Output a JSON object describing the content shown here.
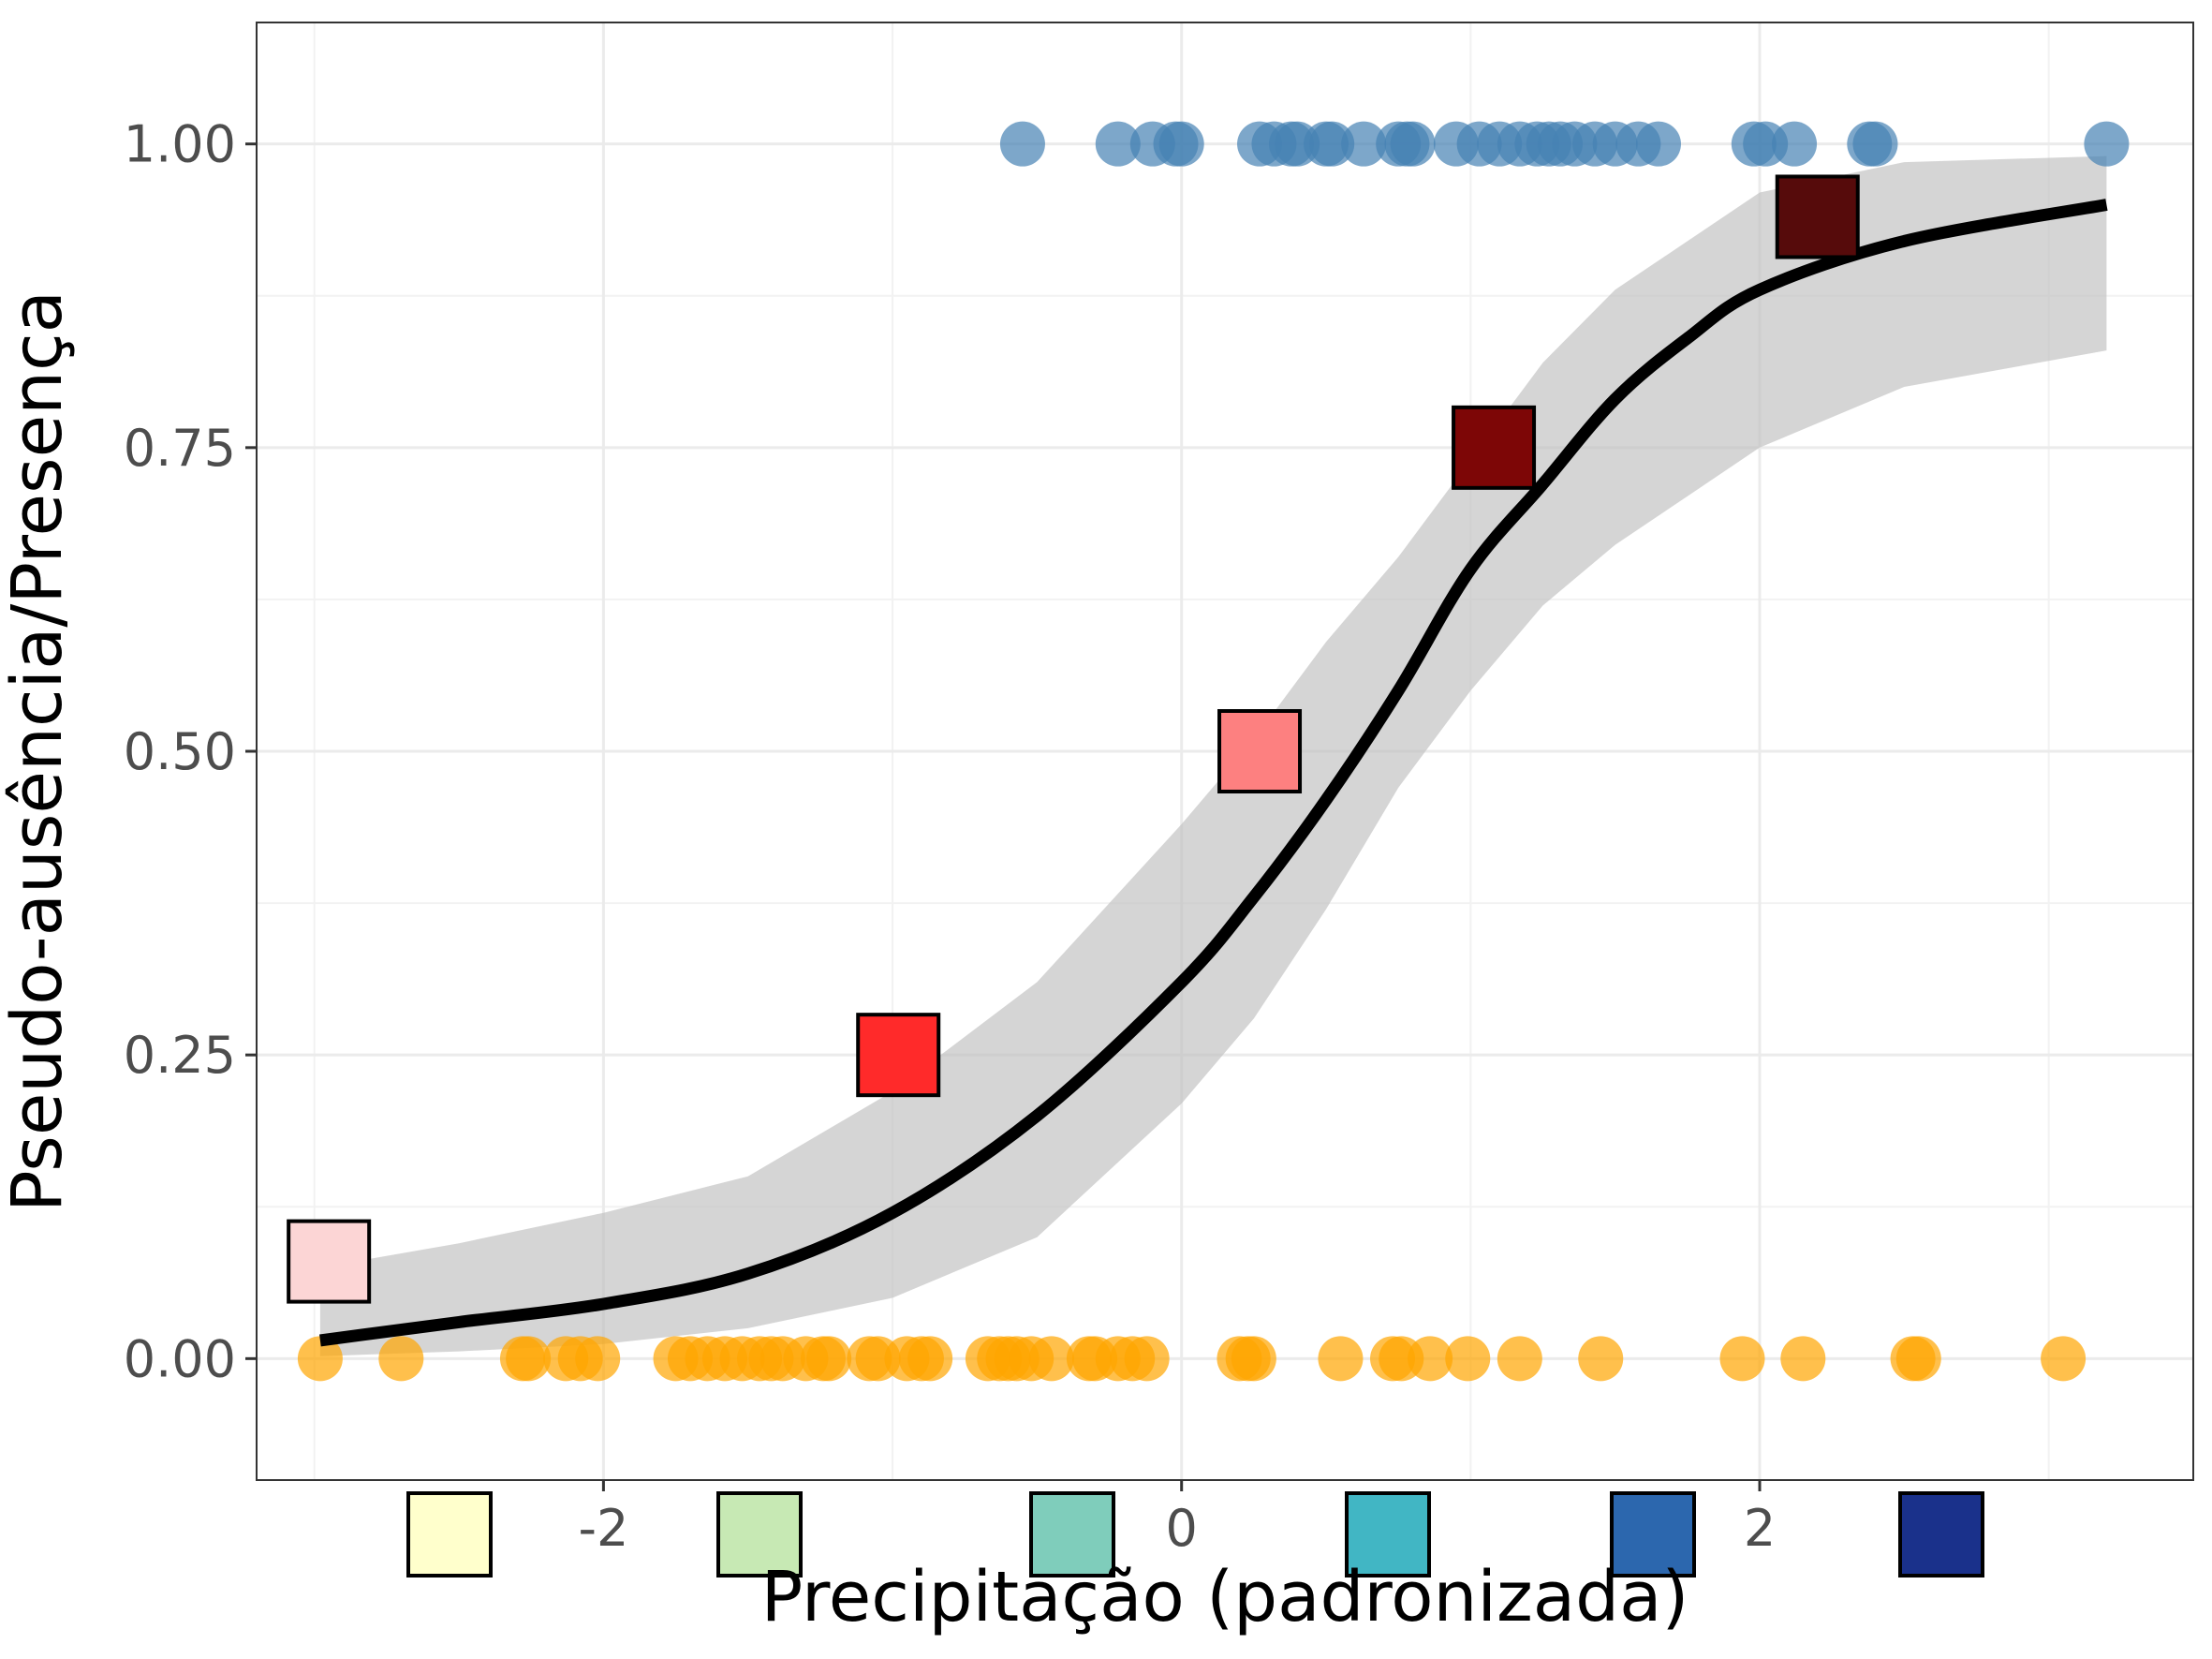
{
  "chart_data": {
    "type": "scatter",
    "title": "",
    "xlabel": "Precipitação (padronizada)",
    "ylabel": "Pseudo-ausência/Presença",
    "xlim": [
      -3.2,
      3.5
    ],
    "ylim": [
      -0.1,
      1.1
    ],
    "x_ticks": [
      -2,
      0,
      2
    ],
    "x_tick_labels": [
      "-2",
      "0",
      "2"
    ],
    "y_ticks": [
      0,
      0.25,
      0.5,
      0.75,
      1.0
    ],
    "y_tick_labels": [
      "0.00",
      "0.25",
      "0.50",
      "0.75",
      "1.00"
    ],
    "grid": true,
    "colors": {
      "presence": "#4682b4",
      "absence": "#ffa500",
      "fit_line": "#000000",
      "ribbon": "#bfbfbf"
    },
    "series": [
      {
        "kind": "points",
        "color": "#4682b4",
        "y": 1,
        "x": [
          -0.55,
          -0.22,
          -0.1,
          -0.02,
          0.0,
          0.27,
          0.32,
          0.38,
          0.4,
          0.5,
          0.52,
          0.63,
          0.75,
          0.78,
          0.8,
          0.95,
          1.03,
          1.1,
          1.17,
          1.23,
          1.27,
          1.31,
          1.36,
          1.43,
          1.5,
          1.58,
          1.65,
          1.98,
          2.02,
          2.12,
          2.38,
          2.4,
          3.2
        ]
      },
      {
        "kind": "points",
        "color": "#ffa500",
        "y": 0,
        "x": [
          -2.98,
          -2.7,
          -2.28,
          -2.26,
          -2.13,
          -2.08,
          -2.02,
          -1.75,
          -1.7,
          -1.64,
          -1.58,
          -1.52,
          -1.46,
          -1.42,
          -1.38,
          -1.3,
          -1.24,
          -1.22,
          -1.08,
          -1.05,
          -0.95,
          -0.9,
          -0.87,
          -0.67,
          -0.63,
          -0.6,
          -0.57,
          -0.52,
          -0.45,
          -0.32,
          -0.3,
          -0.22,
          -0.17,
          -0.12,
          0.2,
          0.23,
          0.25,
          0.55,
          0.73,
          0.76,
          0.86,
          0.99,
          1.17,
          1.45,
          1.94,
          2.15,
          2.53,
          2.55,
          3.05
        ]
      },
      {
        "kind": "binned_means",
        "x": [
          -2.95,
          -0.98,
          0.27,
          1.08,
          2.2
        ],
        "y": [
          0.08,
          0.25,
          0.5,
          0.75,
          0.94
        ],
        "colors": [
          "#fcd5d5",
          "#ff2a2a",
          "#fd8080",
          "#7d0606",
          "#560b0b"
        ]
      },
      {
        "kind": "fit",
        "color": "#000000",
        "x": [
          -2.98,
          -2.5,
          -2.0,
          -1.5,
          -1.0,
          -0.5,
          0.0,
          0.25,
          0.5,
          0.75,
          1.0,
          1.25,
          1.5,
          1.75,
          2.0,
          2.5,
          3.2
        ],
        "y": [
          0.015,
          0.03,
          0.045,
          0.07,
          0.12,
          0.2,
          0.31,
          0.38,
          0.46,
          0.55,
          0.65,
          0.72,
          0.79,
          0.84,
          0.88,
          0.92,
          0.95
        ],
        "ribbon_lower": [
          0.002,
          0.006,
          0.012,
          0.025,
          0.05,
          0.1,
          0.21,
          0.28,
          0.37,
          0.47,
          0.55,
          0.62,
          0.67,
          0.71,
          0.75,
          0.8,
          0.83
        ],
        "ribbon_upper": [
          0.075,
          0.095,
          0.12,
          0.15,
          0.22,
          0.31,
          0.44,
          0.51,
          0.59,
          0.66,
          0.74,
          0.82,
          0.88,
          0.92,
          0.96,
          0.985,
          0.99
        ]
      }
    ],
    "legend": {
      "placement": "bottom",
      "colors": [
        "#ffffcc",
        "#c7e9b4",
        "#7fcdbb",
        "#41b6c4",
        "#2c67ae",
        "#1a318b"
      ]
    }
  }
}
